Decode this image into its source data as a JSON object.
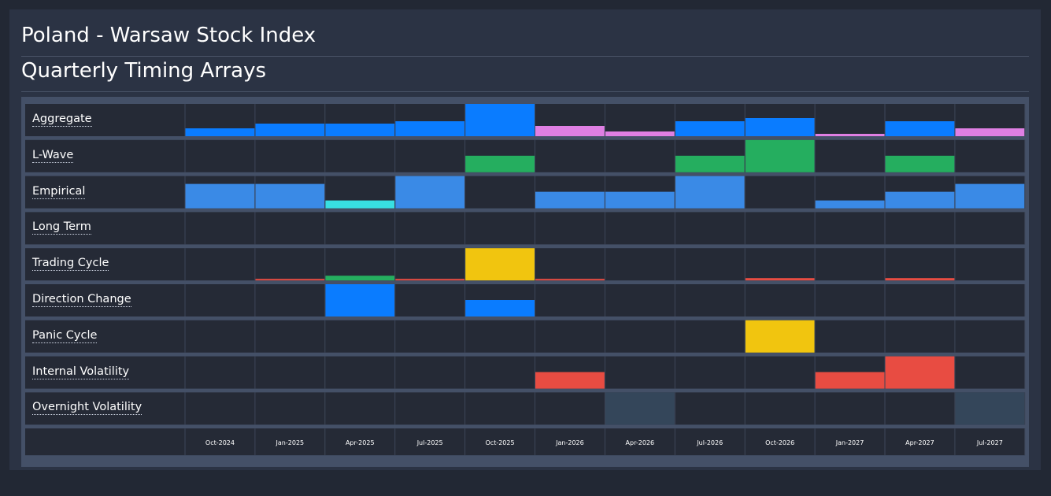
{
  "title": "Poland - Warsaw Stock Index",
  "subtitle": "Quarterly Timing Arrays",
  "colors": {
    "blue": "#0a7cff",
    "light_blue": "#3a8ae6",
    "violet": "#df7fe3",
    "green": "#25ae5f",
    "cyan": "#38dfe2",
    "yellow": "#f1c50f",
    "red": "#e84c42",
    "slate": "#34465a"
  },
  "chart_data": {
    "type": "heatmap",
    "title": "Quarterly Timing Arrays",
    "y_scale_max": 4,
    "categories": [
      "Oct-2024",
      "Jan-2025",
      "Apr-2025",
      "Jul-2025",
      "Oct-2025",
      "Jan-2026",
      "Apr-2026",
      "Jul-2026",
      "Oct-2026",
      "Jan-2027",
      "Apr-2027",
      "Jul-2027"
    ],
    "series": [
      {
        "name": "Aggregate",
        "values": [
          1,
          1.6,
          1.6,
          1.9,
          4,
          1.3,
          0.6,
          1.9,
          2.2,
          0.3,
          1.9,
          1
        ],
        "colors": [
          "blue",
          "blue",
          "blue",
          "blue",
          "blue",
          "violet",
          "violet",
          "blue",
          "blue",
          "violet",
          "blue",
          "violet"
        ]
      },
      {
        "name": "L-Wave",
        "values": [
          0,
          0,
          0,
          0,
          2,
          0,
          0,
          2,
          4,
          0,
          2,
          0
        ],
        "colors": [
          "",
          "",
          "",
          "",
          "green",
          "",
          "",
          "green",
          "green",
          "",
          "green",
          ""
        ]
      },
      {
        "name": "Empirical",
        "values": [
          3,
          3,
          1,
          4,
          0,
          2,
          2,
          4,
          0,
          1,
          2,
          3
        ],
        "colors": [
          "light_blue",
          "light_blue",
          "cyan",
          "light_blue",
          "",
          "light_blue",
          "light_blue",
          "light_blue",
          "",
          "light_blue",
          "light_blue",
          "light_blue"
        ]
      },
      {
        "name": "Long Term",
        "values": [
          0,
          0,
          0,
          0,
          0,
          0,
          0,
          0,
          0,
          0,
          0,
          0
        ],
        "colors": [
          "",
          "",
          "",
          "",
          "",
          "",
          "",
          "",
          "",
          "",
          "",
          ""
        ]
      },
      {
        "name": "Trading Cycle",
        "values": [
          0,
          0.2,
          0.6,
          0.2,
          4,
          0.2,
          0,
          0,
          0.3,
          0,
          0.3,
          0
        ],
        "colors": [
          "",
          "red",
          "green",
          "red",
          "yellow",
          "red",
          "",
          "",
          "red",
          "",
          "red",
          ""
        ]
      },
      {
        "name": "Direction Change",
        "values": [
          0,
          0,
          4,
          0,
          2,
          0,
          0,
          0,
          0,
          0,
          0,
          0
        ],
        "colors": [
          "",
          "",
          "blue",
          "",
          "blue",
          "",
          "",
          "",
          "",
          "",
          "",
          ""
        ]
      },
      {
        "name": "Panic Cycle",
        "values": [
          0,
          0,
          0,
          0,
          0,
          0,
          0,
          0,
          4,
          0,
          0,
          0
        ],
        "colors": [
          "",
          "",
          "",
          "",
          "",
          "",
          "",
          "",
          "yellow",
          "",
          "",
          ""
        ]
      },
      {
        "name": "Internal Volatility",
        "values": [
          0,
          0,
          0,
          0,
          0,
          2,
          0,
          0,
          0,
          2,
          4,
          0
        ],
        "colors": [
          "",
          "",
          "",
          "",
          "",
          "red",
          "",
          "",
          "",
          "red",
          "red",
          ""
        ]
      },
      {
        "name": "Overnight Volatility",
        "values": [
          0,
          0,
          0,
          0,
          0,
          0,
          4,
          0,
          0,
          0,
          0,
          4
        ],
        "colors": [
          "",
          "",
          "",
          "",
          "",
          "",
          "slate",
          "",
          "",
          "",
          "",
          "slate"
        ]
      }
    ]
  }
}
